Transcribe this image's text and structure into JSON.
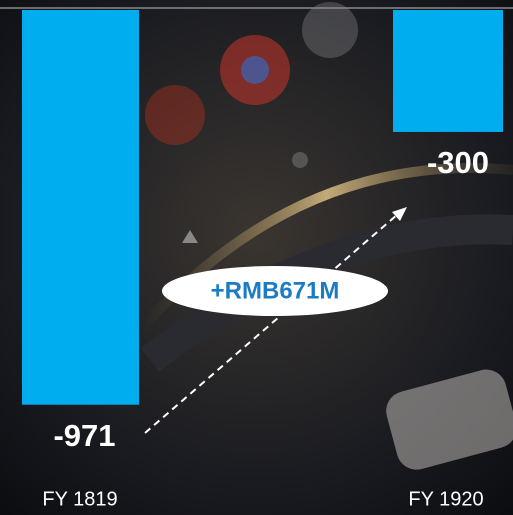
{
  "chart_data": {
    "type": "bar",
    "categories": [
      "FY 1819",
      "FY 1920"
    ],
    "values": [
      -971,
      -300
    ],
    "color": "#00aeef",
    "annotation": "+RMB671M"
  }
}
